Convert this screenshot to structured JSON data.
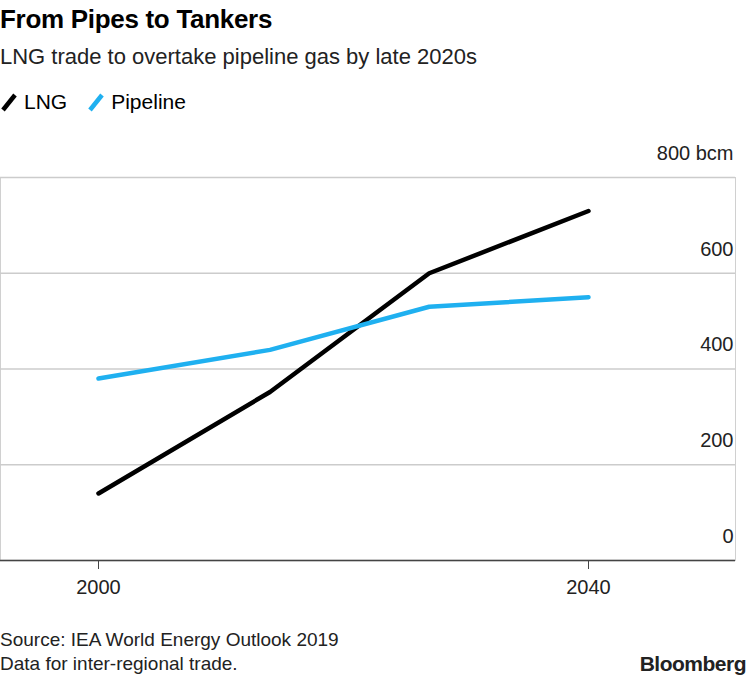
{
  "chart_data": {
    "type": "line",
    "title": "From Pipes to Tankers",
    "subtitle": "LNG trade to overtake pipeline gas by late 2020s",
    "x": [
      2000,
      2014,
      2027,
      2040
    ],
    "series": [
      {
        "name": "LNG",
        "color": "#000000",
        "values": [
          140,
          352,
          600,
          730
        ]
      },
      {
        "name": "Pipeline",
        "color": "#1fb0f0",
        "values": [
          380,
          440,
          530,
          550
        ]
      }
    ],
    "xlim": [
      1992,
      2052
    ],
    "xticks": [
      2000,
      2040
    ],
    "ylim": [
      0,
      800
    ],
    "yticks": [
      0,
      200,
      400,
      600,
      {
        "value": 800,
        "label": "800 bcm"
      }
    ],
    "grid": true,
    "legend": "top-left",
    "source": "Source: IEA World Energy Outlook 2019",
    "note": "Data for inter-regional trade.",
    "credit": "Bloomberg"
  }
}
